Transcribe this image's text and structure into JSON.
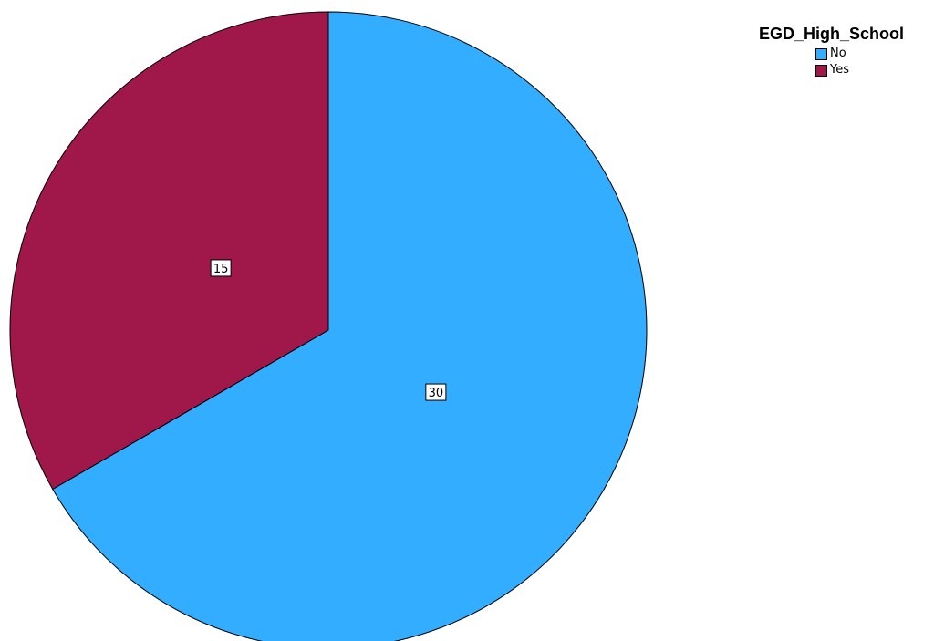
{
  "chart_data": {
    "type": "pie",
    "legend_title": "EGD_High_School",
    "legend_position": "top-right",
    "slices": [
      {
        "label": "No",
        "value": 30,
        "color": "#33adff"
      },
      {
        "label": "Yes",
        "value": 15,
        "color": "#a0174a"
      }
    ]
  }
}
